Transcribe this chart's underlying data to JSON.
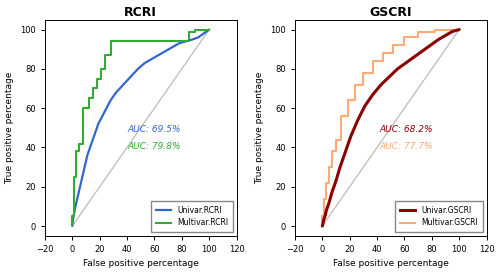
{
  "title_left": "RCRI",
  "title_right": "GSCRI",
  "xlabel": "False positive percentage",
  "ylabel": "True positive percentage",
  "xlim": [
    -20,
    120
  ],
  "ylim": [
    -5,
    105
  ],
  "xticks": [
    -20,
    0,
    20,
    40,
    60,
    80,
    100,
    120
  ],
  "yticks": [
    0,
    20,
    40,
    60,
    80,
    100
  ],
  "diagonal_color": "#bbbbbb",
  "rcri_univar_color": "#3366CC",
  "rcri_multivar_color": "#33AA33",
  "gscri_univar_color": "#8B0000",
  "gscri_multivar_color": "#FFAA77",
  "rcri_univar_label": "Univar.RCRI",
  "rcri_multivar_label": "Multivar.RCRI",
  "gscri_univar_label": "Univar.GSCRI",
  "gscri_multivar_label": "Multivar.GSCRI",
  "rcri_auc_univar": "AUC: 69.5%",
  "rcri_auc_multivar": "AUC: 79.8%",
  "gscri_auc_univar": "AUC: 68.2%",
  "gscri_auc_multivar": "AUC: 77.7%",
  "rcri_univar_x": [
    0,
    0.3,
    0.7,
    1.2,
    2,
    3,
    4,
    5,
    6,
    7,
    8,
    9,
    10,
    11,
    13,
    15,
    17,
    19,
    22,
    25,
    28,
    32,
    36,
    40,
    44,
    48,
    53,
    58,
    63,
    68,
    73,
    78,
    83,
    88,
    92,
    96,
    100
  ],
  "rcri_univar_y": [
    0,
    2,
    4,
    6,
    9,
    12,
    15,
    18,
    21,
    24,
    27,
    30,
    33,
    36,
    40,
    44,
    48,
    52,
    56,
    60,
    64,
    68,
    71,
    74,
    77,
    80,
    83,
    85,
    87,
    89,
    91,
    93,
    94,
    95,
    96,
    98,
    100
  ],
  "rcri_multivar_x": [
    0,
    0,
    1,
    1,
    3,
    3,
    5,
    5,
    8,
    8,
    12,
    12,
    15,
    15,
    18,
    18,
    21,
    21,
    24,
    24,
    28,
    28,
    85,
    85,
    90,
    90,
    100,
    100
  ],
  "rcri_multivar_y": [
    0,
    5,
    5,
    25,
    25,
    38,
    38,
    42,
    42,
    60,
    60,
    65,
    65,
    70,
    70,
    75,
    75,
    80,
    80,
    87,
    87,
    94,
    94,
    99,
    99,
    100,
    100,
    100
  ],
  "gscri_univar_x": [
    0,
    0.5,
    1,
    2,
    3,
    5,
    7,
    10,
    13,
    17,
    21,
    26,
    31,
    37,
    43,
    49,
    55,
    61,
    67,
    73,
    79,
    85,
    90,
    95,
    100
  ],
  "gscri_univar_y": [
    0,
    1,
    3,
    5,
    8,
    12,
    17,
    23,
    30,
    38,
    46,
    54,
    61,
    67,
    72,
    76,
    80,
    83,
    86,
    89,
    92,
    95,
    97,
    99,
    100
  ],
  "gscri_multivar_x": [
    0,
    0,
    1,
    1,
    3,
    3,
    5,
    5,
    7,
    7,
    10,
    10,
    14,
    14,
    19,
    19,
    24,
    24,
    30,
    30,
    37,
    37,
    44,
    44,
    52,
    52,
    60,
    60,
    70,
    70,
    82,
    82,
    87,
    87,
    100,
    100
  ],
  "gscri_multivar_y": [
    0,
    5,
    5,
    14,
    14,
    22,
    22,
    30,
    30,
    38,
    38,
    44,
    44,
    56,
    56,
    64,
    64,
    72,
    72,
    78,
    78,
    84,
    84,
    88,
    88,
    92,
    92,
    96,
    96,
    99,
    99,
    100,
    100,
    100,
    100,
    100
  ],
  "background_color": "#ffffff",
  "lw_univar": 1.6,
  "lw_multivar": 1.5
}
